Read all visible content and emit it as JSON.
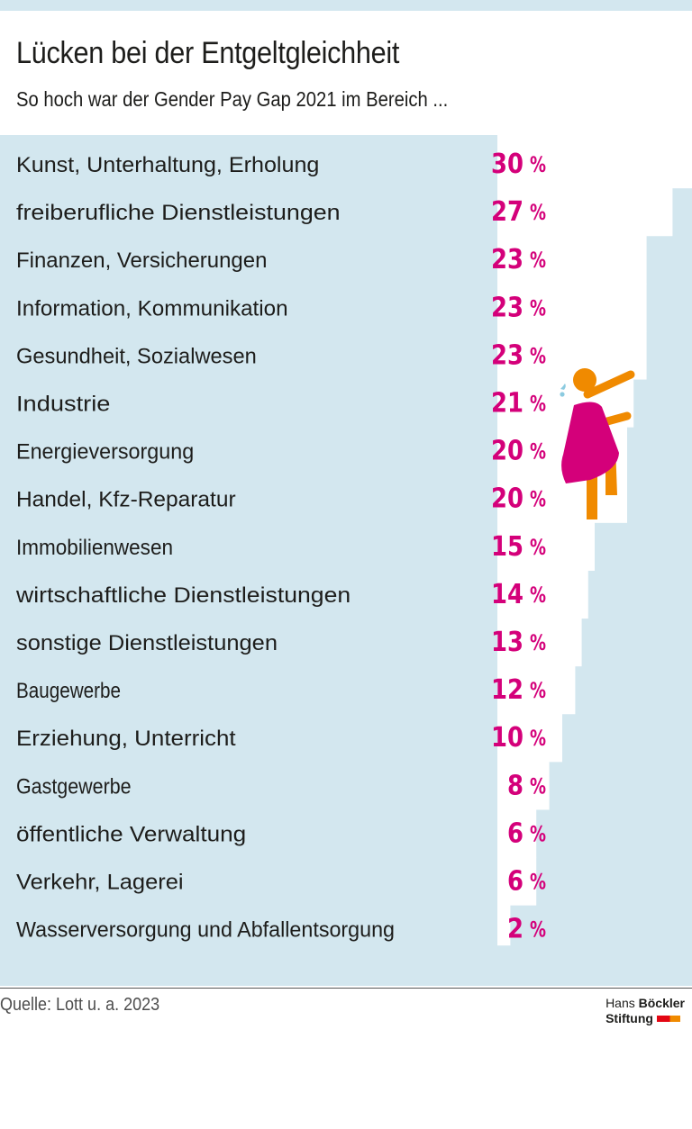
{
  "title": "Lücken bei der Entgeltgleichheit",
  "subtitle": "So hoch war der Gender Pay Gap 2021 im Bereich ...",
  "source": "Quelle: Lott u. a. 2023",
  "logo": {
    "line1_light": "Hans",
    "line1_bold": "Böckler",
    "line2": "Stiftung"
  },
  "colors": {
    "accent": "#d4007a",
    "panel": "#d3e7ef",
    "figure_body": "#d4007a",
    "figure_skin": "#f08a00"
  },
  "chart_data": {
    "type": "bar",
    "title": "Lücken bei der Entgeltgleichheit",
    "subtitle": "So hoch war der Gender Pay Gap 2021 im Bereich ...",
    "unit": "%",
    "ylim": [
      0,
      30
    ],
    "categories": [
      "Kunst, Unterhaltung, Erholung",
      "freiberufliche Dienstleistungen",
      "Finanzen, Versicherungen",
      "Information, Kommunikation",
      "Gesundheit, Sozialwesen",
      "Industrie",
      "Energieversorgung",
      "Handel, Kfz-Reparatur",
      "Immobilienwesen",
      "wirtschaftliche Dienstleistungen",
      "sonstige Dienstleistungen",
      "Baugewerbe",
      "Erziehung, Unterricht",
      "Gastgewerbe",
      "öffentliche Verwaltung",
      "Verkehr, Lagerei",
      "Wasserversorgung und Abfallentsorgung"
    ],
    "values": [
      30,
      27,
      23,
      23,
      23,
      21,
      20,
      20,
      15,
      14,
      13,
      12,
      10,
      8,
      6,
      6,
      2
    ]
  }
}
